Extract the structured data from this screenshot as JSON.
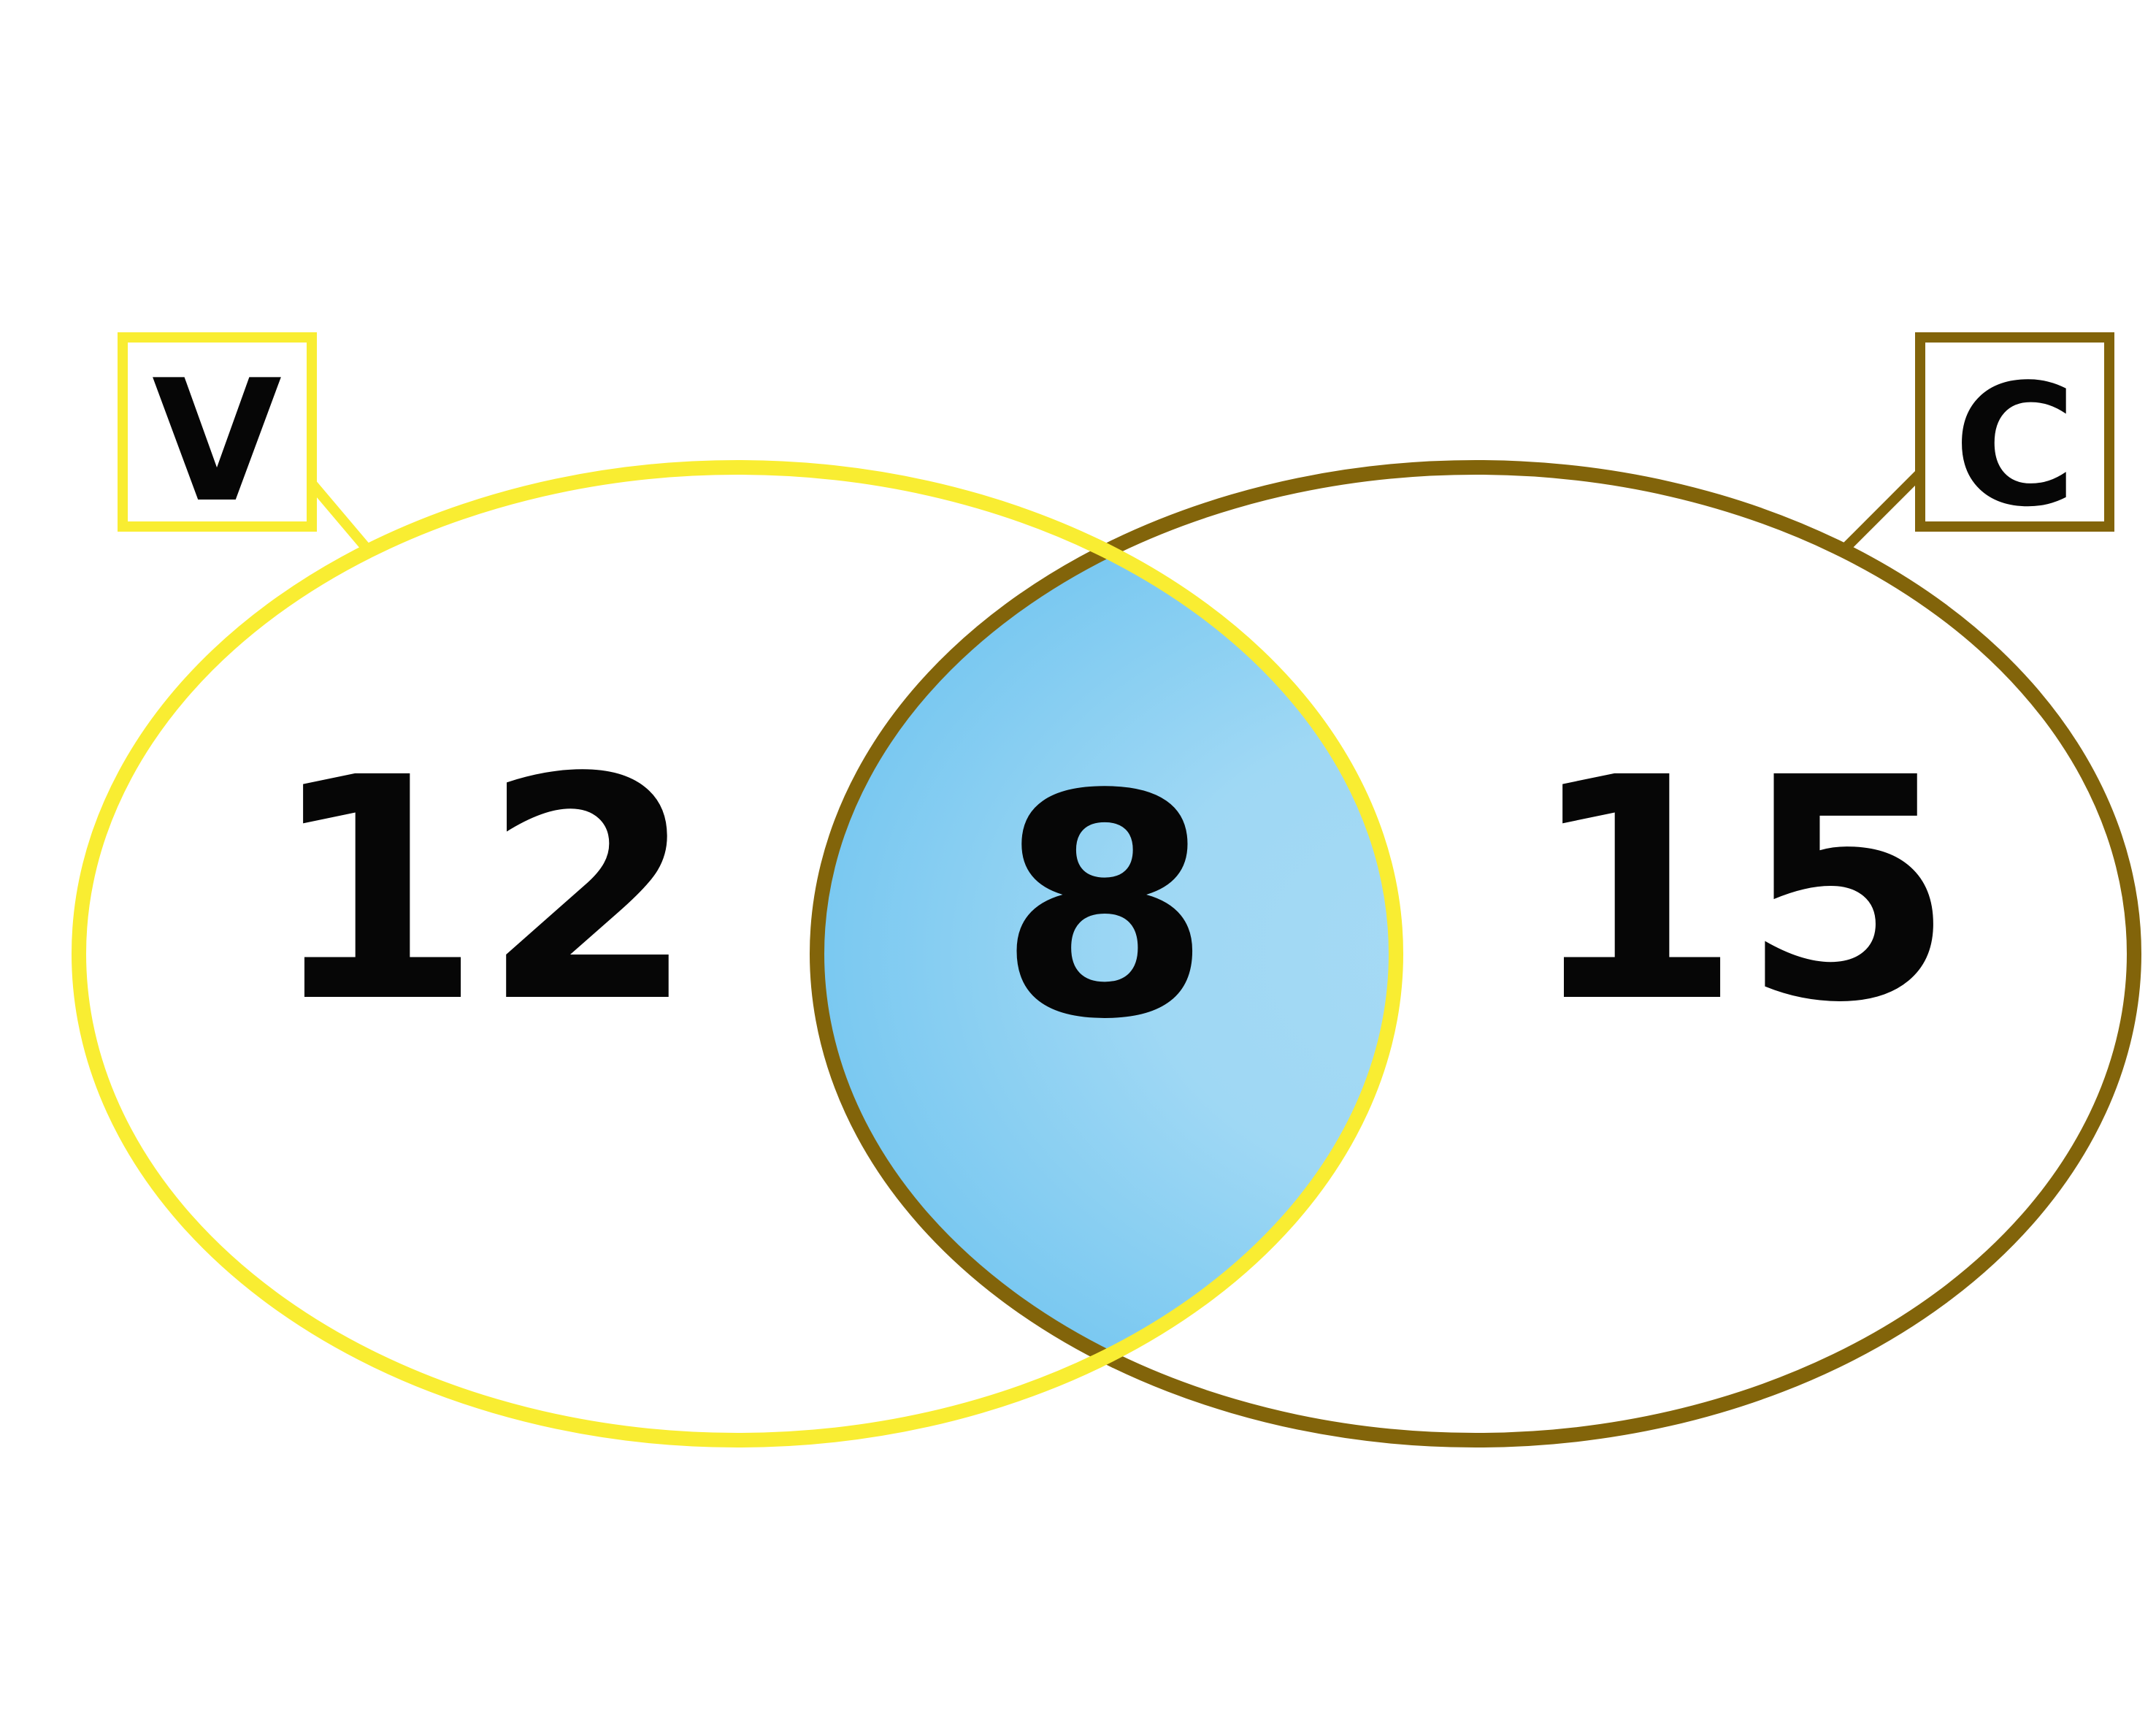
{
  "sets": [
    {
      "label": "V",
      "color": "#F9ED32",
      "exclusive_count": "12"
    },
    {
      "label": "C",
      "color": "#82640A",
      "exclusive_count": "15"
    }
  ],
  "intersection": {
    "count": "8",
    "fill_center": "#A6DAF5",
    "fill_edge": "#72C5F0"
  }
}
